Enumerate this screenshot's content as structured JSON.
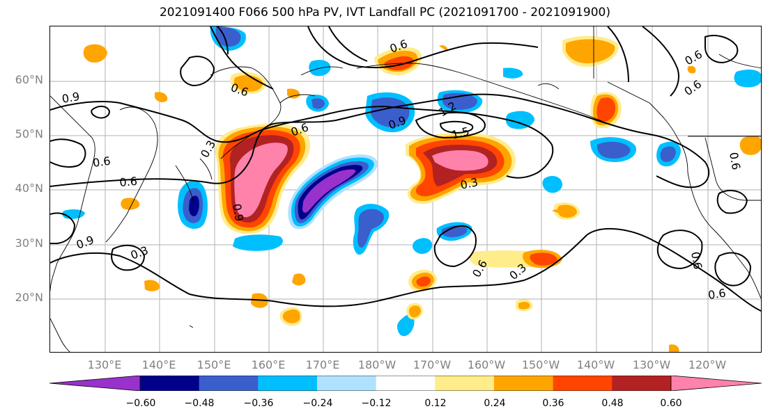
{
  "title": "2021091400 F066 500 hPa PV, IVT Landfall PC (2021091700 - 2021091900)",
  "map": {
    "lat_labels": [
      "60°N",
      "50°N",
      "40°N",
      "30°N",
      "20°N"
    ],
    "lon_labels": [
      "130°E",
      "140°E",
      "150°E",
      "160°E",
      "170°E",
      "180°W",
      "170°W",
      "160°W",
      "150°W",
      "140°W",
      "130°W",
      "120°W"
    ],
    "contour_labels": [
      "0.9",
      "0.6",
      "0.3",
      "0.6",
      "0.9",
      "1.2",
      "1.5",
      "0.3",
      "0.9",
      "0.6",
      "0.9",
      "0.6",
      "0.3",
      "0.6",
      "0.6",
      "0.6",
      "0.6",
      "0.6",
      "0.3",
      "0.6",
      "0.6"
    ],
    "colors": {
      "neg_060": "#9932CC",
      "neg_048": "#00008B",
      "neg_036": "#3A5FCD",
      "neg_024": "#00BFFF",
      "neg_012": "#B0E2FF",
      "zero": "#FFFFFF",
      "pos_012": "#FFEC8B",
      "pos_024": "#FFA500",
      "pos_036": "#FF4500",
      "pos_048": "#B22222",
      "pos_060": "#FF82AB"
    }
  },
  "colorbar": {
    "ticks": [
      "−0.60",
      "−0.48",
      "−0.36",
      "−0.24",
      "−0.12",
      "0.12",
      "0.24",
      "0.36",
      "0.48",
      "0.60"
    ],
    "colors": [
      "#9932CC",
      "#00008B",
      "#3A5FCD",
      "#00BFFF",
      "#B0E2FF",
      "#FFFFFF",
      "#FFEC8B",
      "#FFA500",
      "#FF4500",
      "#B22222",
      "#FF82AB"
    ]
  }
}
